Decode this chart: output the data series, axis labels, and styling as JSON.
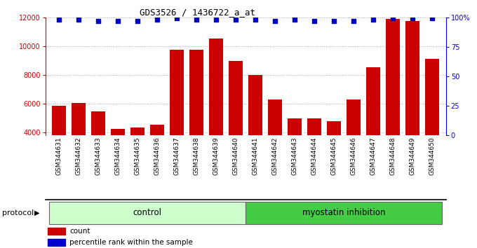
{
  "title": "GDS3526 / 1436722_a_at",
  "samples": [
    "GSM344631",
    "GSM344632",
    "GSM344633",
    "GSM344634",
    "GSM344635",
    "GSM344636",
    "GSM344637",
    "GSM344638",
    "GSM344639",
    "GSM344640",
    "GSM344641",
    "GSM344642",
    "GSM344643",
    "GSM344644",
    "GSM344645",
    "GSM344646",
    "GSM344647",
    "GSM344648",
    "GSM344649",
    "GSM344650"
  ],
  "counts": [
    5850,
    6050,
    5450,
    4250,
    4350,
    4550,
    9750,
    9750,
    10550,
    8950,
    8000,
    6300,
    4950,
    4950,
    4750,
    6300,
    8550,
    11900,
    11750,
    9100
  ],
  "percentile_ranks": [
    98,
    98,
    97,
    97,
    97,
    98,
    99,
    98,
    98,
    98,
    98,
    97,
    98,
    97,
    97,
    97,
    98,
    99,
    99,
    99
  ],
  "bar_color": "#CC0000",
  "dot_color": "#0000CC",
  "n_control": 10,
  "control_label": "control",
  "myostatin_label": "myostatin inhibition",
  "protocol_label": "protocol",
  "ylim_left": [
    3800,
    12000
  ],
  "ylim_right": [
    0,
    100
  ],
  "yticks_left": [
    4000,
    6000,
    8000,
    10000,
    12000
  ],
  "yticks_right": [
    0,
    25,
    50,
    75,
    100
  ],
  "grid_color": "#888888",
  "sample_bg": "#d0d0d0",
  "control_bg": "#ccffcc",
  "myostatin_bg": "#44cc44",
  "legend_count_label": "count",
  "legend_pct_label": "percentile rank within the sample",
  "title_fontsize": 9,
  "tick_fontsize": 7,
  "label_fontsize": 8
}
